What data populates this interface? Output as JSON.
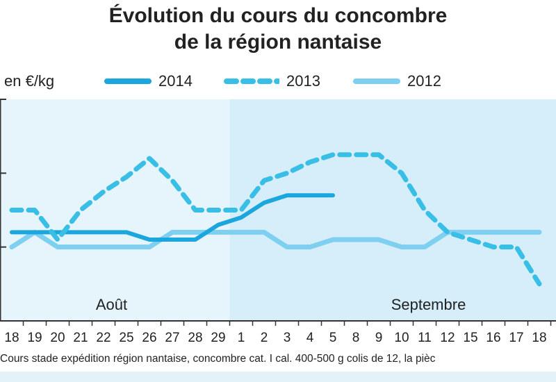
{
  "title_lines": [
    "Évolution du cours du concombre",
    "de la région nantaise"
  ],
  "footnote": "Cours stade expédition région nantaise, concombre cat. I cal. 400-500 g colis de 12, la pièc",
  "colors": {
    "s2014": "#1ba6dd",
    "s2013": "#39bfe6",
    "s2012": "#7fd0f0",
    "panel_aout": "#e6f4fb",
    "panel_septembre": "#d6eef9",
    "axis": "#333333"
  },
  "chart_data": {
    "type": "line",
    "title": "Évolution du cours du concombre de la région nantaise",
    "ylabel": "en €/kg",
    "xlabel": "",
    "categories": [
      "18",
      "19",
      "20",
      "21",
      "22",
      "25",
      "26",
      "27",
      "28",
      "29",
      "1",
      "2",
      "3",
      "4",
      "5",
      "8",
      "9",
      "10",
      "11",
      "12",
      "15",
      "16",
      "17",
      "18"
    ],
    "months": [
      {
        "label": "Août",
        "from": 0,
        "to": 9
      },
      {
        "label": "Septembre",
        "from": 10,
        "to": 23
      }
    ],
    "ylim": [
      0,
      3
    ],
    "y_ticks_labeled": false,
    "grid": false,
    "legend_position": "top",
    "series": [
      {
        "name": "2014",
        "style": "solid-thick",
        "values": [
          1.2,
          1.2,
          1.2,
          1.2,
          1.2,
          1.2,
          1.1,
          1.1,
          1.1,
          1.3,
          1.4,
          1.6,
          1.7,
          1.7,
          1.7,
          null,
          null,
          null,
          null,
          null,
          null,
          null,
          null,
          null
        ]
      },
      {
        "name": "2013",
        "style": "dashed",
        "values": [
          1.5,
          1.5,
          1.1,
          1.5,
          1.75,
          1.95,
          2.2,
          1.9,
          1.5,
          1.5,
          1.5,
          1.9,
          2.0,
          2.15,
          2.25,
          2.25,
          2.25,
          2.0,
          1.5,
          1.2,
          1.1,
          1.0,
          1.0,
          0.5
        ]
      },
      {
        "name": "2012",
        "style": "solid",
        "values": [
          1.0,
          1.2,
          1.0,
          1.0,
          1.0,
          1.0,
          1.0,
          1.2,
          1.2,
          1.2,
          1.2,
          1.2,
          1.0,
          1.0,
          1.1,
          1.1,
          1.1,
          1.0,
          1.0,
          1.2,
          1.2,
          1.2,
          1.2,
          1.2
        ]
      }
    ]
  }
}
